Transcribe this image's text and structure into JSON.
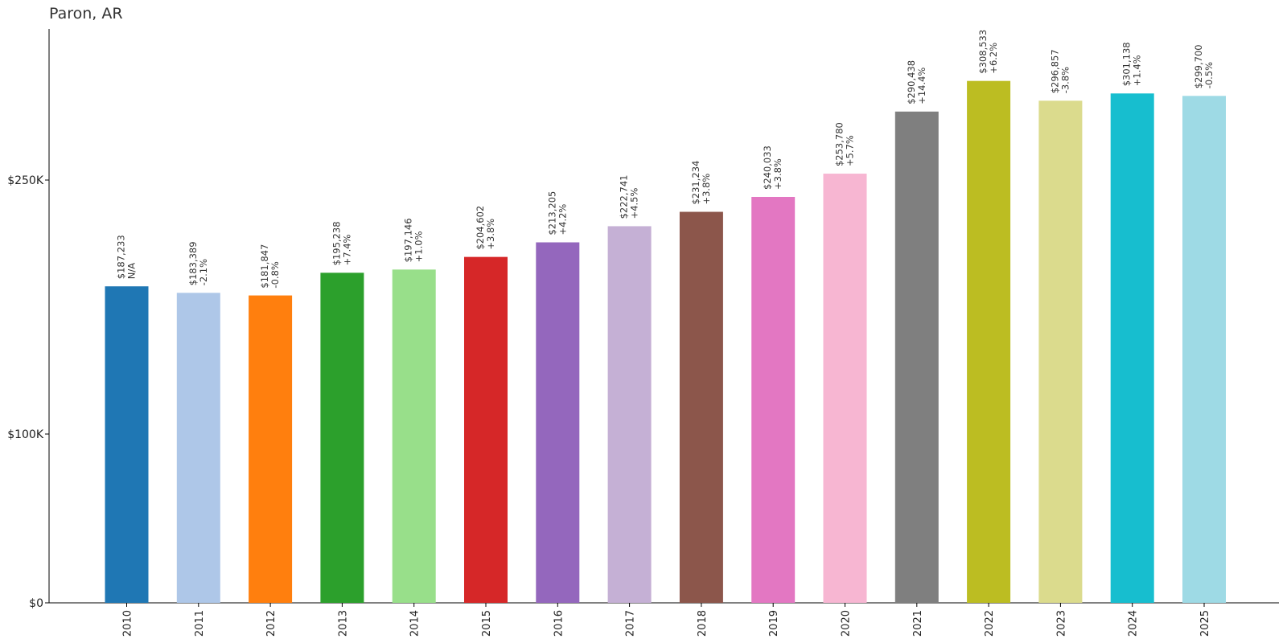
{
  "chart_data": {
    "type": "bar",
    "title": "Paron, AR",
    "xlabel": "",
    "ylabel": "",
    "ylim": [
      0,
      330000
    ],
    "yscale": "piecewise-linear",
    "yticks": [
      {
        "value": 0,
        "label": "$0"
      },
      {
        "value": 100000,
        "label": "$100K"
      },
      {
        "value": 250000,
        "label": "$250K"
      }
    ],
    "categories": [
      "2010",
      "2011",
      "2012",
      "2013",
      "2014",
      "2015",
      "2016",
      "2017",
      "2018",
      "2019",
      "2020",
      "2021",
      "2022",
      "2023",
      "2024",
      "2025"
    ],
    "values": [
      187233,
      183389,
      181847,
      195238,
      197146,
      204602,
      213205,
      222741,
      231234,
      240033,
      253780,
      290438,
      308533,
      296857,
      301138,
      299700
    ],
    "value_labels": [
      "$187,233",
      "$183,389",
      "$181,847",
      "$195,238",
      "$197,146",
      "$204,602",
      "$213,205",
      "$222,741",
      "$231,234",
      "$240,033",
      "$253,780",
      "$290,438",
      "$308,533",
      "$296,857",
      "$301,138",
      "$299,700"
    ],
    "change_labels": [
      "N/A",
      "-2.1%",
      "-0.8%",
      "+7.4%",
      "+1.0%",
      "+3.8%",
      "+4.2%",
      "+4.5%",
      "+3.8%",
      "+3.8%",
      "+5.7%",
      "+14.4%",
      "+6.2%",
      "-3.8%",
      "+1.4%",
      "-0.5%"
    ],
    "colors": [
      "#1f77b4",
      "#aec7e8",
      "#ff7f0e",
      "#2ca02c",
      "#98df8a",
      "#d62728",
      "#9467bd",
      "#c5b0d5",
      "#8c564b",
      "#e377c2",
      "#f7b6d2",
      "#7f7f7f",
      "#bcbd22",
      "#dbdb8d",
      "#17becf",
      "#9edae5"
    ],
    "grid": false,
    "legend": "none"
  }
}
